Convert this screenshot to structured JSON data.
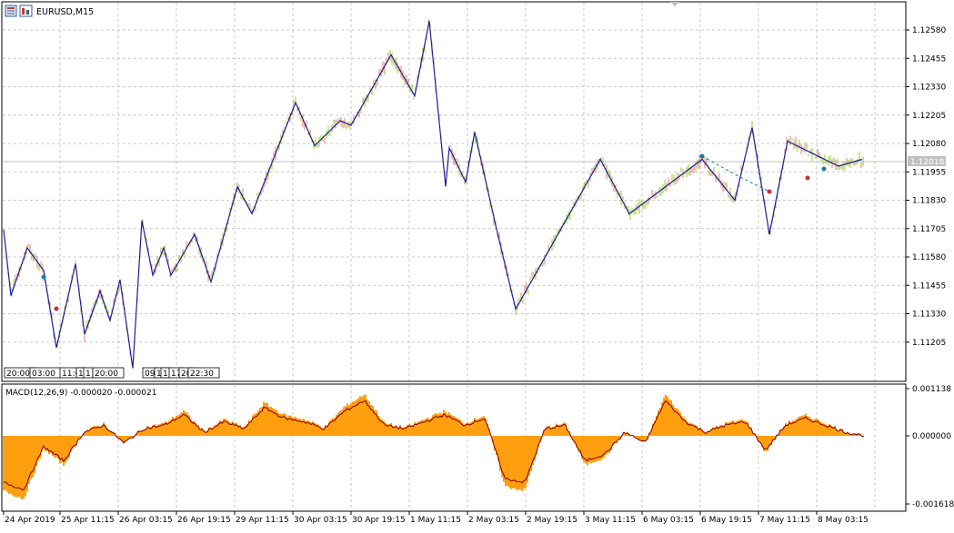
{
  "window": {
    "symbol_label": "EURUSD,M15",
    "icon_names": [
      "chart-window-icon",
      "bar-chart-icon"
    ]
  },
  "colors": {
    "grid": "#c8c8c8",
    "candle_up": "#9acd32",
    "candle_down": "#e0806a",
    "zigzag": "#1e1e9a",
    "macd_hist": "#ff9f0f",
    "macd_signal": "#800000",
    "price_tag": "#c0c0c0"
  },
  "price_axis": {
    "ticks": [
      "1.12580",
      "1.12455",
      "1.12330",
      "1.12205",
      "1.12080",
      "1.11955",
      "1.11830",
      "1.11705",
      "1.11580",
      "1.11455",
      "1.11330",
      "1.11205"
    ],
    "current_price": "1.12018"
  },
  "macd_panel": {
    "label": "MACD(12,26,9) -0.000020 -0.000021",
    "ticks": [
      "0.001138",
      "0.000000",
      "-0.001618"
    ]
  },
  "session_labels": [
    "20:00",
    "03:00",
    "11:0",
    "1",
    "1",
    "20:00",
    "09",
    "13",
    "1",
    "17",
    "20",
    "22:30"
  ],
  "time_axis": [
    "24 Apr 2019",
    "25 Apr 11:15",
    "26 Apr 03:15",
    "26 Apr 19:15",
    "29 Apr 11:15",
    "30 Apr 03:15",
    "30 Apr 19:15",
    "1 May 11:15",
    "2 May 03:15",
    "2 May 19:15",
    "3 May 11:15",
    "6 May 03:15",
    "6 May 19:15",
    "7 May 11:15",
    "8 May 03:15"
  ],
  "chart_data": {
    "type": "line",
    "symbol": "EURUSD",
    "timeframe": "M15",
    "ylim": [
      1.1114,
      1.1268
    ],
    "zigzag_price": [
      {
        "x": "24 Apr 2019",
        "y": 1.117
      },
      {
        "x": "24 Apr 2019",
        "y": 1.1141
      },
      {
        "x": "24 Apr 2019",
        "y": 1.1162
      },
      {
        "x": "25 Apr 11:15",
        "y": 1.1152
      },
      {
        "x": "25 Apr 11:15",
        "y": 1.1118
      },
      {
        "x": "25 Apr 11:15",
        "y": 1.1155
      },
      {
        "x": "25 Apr 11:15",
        "y": 1.1124
      },
      {
        "x": "26 Apr 03:15",
        "y": 1.1143
      },
      {
        "x": "26 Apr 03:15",
        "y": 1.113
      },
      {
        "x": "26 Apr 03:15",
        "y": 1.1148
      },
      {
        "x": "26 Apr 03:15",
        "y": 1.1109
      },
      {
        "x": "26 Apr 03:15",
        "y": 1.1174
      },
      {
        "x": "26 Apr 19:15",
        "y": 1.115
      },
      {
        "x": "26 Apr 19:15",
        "y": 1.1162
      },
      {
        "x": "26 Apr 19:15",
        "y": 1.115
      },
      {
        "x": "26 Apr 19:15",
        "y": 1.1168
      },
      {
        "x": "29 Apr 11:15",
        "y": 1.1147
      },
      {
        "x": "29 Apr 11:15",
        "y": 1.1189
      },
      {
        "x": "30 Apr 03:15",
        "y": 1.1177
      },
      {
        "x": "30 Apr 03:15",
        "y": 1.1226
      },
      {
        "x": "30 Apr 03:15",
        "y": 1.1207
      },
      {
        "x": "30 Apr 19:15",
        "y": 1.1218
      },
      {
        "x": "30 Apr 19:15",
        "y": 1.1216
      },
      {
        "x": "1 May 11:15",
        "y": 1.1247
      },
      {
        "x": "1 May 11:15",
        "y": 1.1229
      },
      {
        "x": "1 May 11:15",
        "y": 1.1262
      },
      {
        "x": "2 May 03:15",
        "y": 1.1189
      },
      {
        "x": "2 May 03:15",
        "y": 1.1206
      },
      {
        "x": "2 May 03:15",
        "y": 1.1191
      },
      {
        "x": "2 May 19:15",
        "y": 1.1213
      },
      {
        "x": "2 May 19:15",
        "y": 1.1172
      },
      {
        "x": "3 May 11:15",
        "y": 1.1135
      },
      {
        "x": "3 May 11:15",
        "y": 1.1201
      },
      {
        "x": "6 May 03:15",
        "y": 1.1177
      },
      {
        "x": "6 May 03:15",
        "y": 1.1201
      },
      {
        "x": "6 May 19:15",
        "y": 1.1183
      },
      {
        "x": "6 May 19:15",
        "y": 1.1215
      },
      {
        "x": "7 May 11:15",
        "y": 1.1168
      },
      {
        "x": "8 May 03:15",
        "y": 1.1209
      },
      {
        "x": "8 May 03:15",
        "y": 1.1198
      },
      {
        "x": "8 May 03:15",
        "y": 1.1201
      }
    ],
    "macd": {
      "ylim": [
        -0.001618,
        0.001138
      ],
      "histogram_approx": [
        -0.0013,
        -0.0015,
        -0.0003,
        -0.0007,
        0.0001,
        0.0003,
        -0.0002,
        0.0002,
        0.0003,
        0.0006,
        0.0001,
        0.0004,
        0.0002,
        0.0008,
        0.0005,
        0.0004,
        0.0002,
        0.0007,
        0.001,
        0.0003,
        0.0002,
        0.0004,
        0.0006,
        0.0003,
        0.0005,
        -0.0012,
        -0.0013,
        0.0002,
        0.0003,
        -0.0007,
        -0.0005,
        0.0001,
        -0.0002,
        0.001,
        0.0004,
        0.0001,
        0.0003,
        0.0004,
        -0.0004,
        0.0003,
        0.0005,
        0.0003,
        0.0001,
        0.0
      ]
    }
  }
}
